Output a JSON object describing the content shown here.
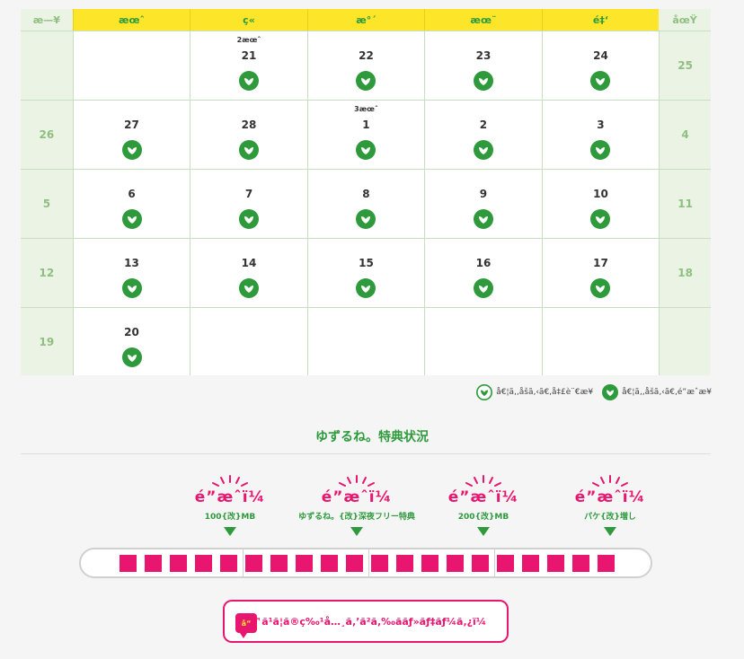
{
  "calendar": {
    "weekdays": [
      "æ—¥",
      "æœˆ",
      "ç«",
      "æ°´",
      "æœ¨",
      "é‡‘",
      "åœŸ"
    ],
    "rows": [
      {
        "left": "",
        "days": [
          {
            "num": "",
            "month": "",
            "icon": false
          },
          {
            "num": "21",
            "month": "2æœˆ",
            "icon": true
          },
          {
            "num": "22",
            "month": "",
            "icon": true
          },
          {
            "num": "23",
            "month": "",
            "icon": true
          },
          {
            "num": "24",
            "month": "",
            "icon": true
          }
        ],
        "right": "25"
      },
      {
        "left": "26",
        "days": [
          {
            "num": "27",
            "month": "",
            "icon": true
          },
          {
            "num": "28",
            "month": "",
            "icon": true
          },
          {
            "num": "1",
            "month": "3æœˆ",
            "icon": true
          },
          {
            "num": "2",
            "month": "",
            "icon": true
          },
          {
            "num": "3",
            "month": "",
            "icon": true
          }
        ],
        "right": "4"
      },
      {
        "left": "5",
        "days": [
          {
            "num": "6",
            "month": "",
            "icon": true
          },
          {
            "num": "7",
            "month": "",
            "icon": true
          },
          {
            "num": "8",
            "month": "",
            "icon": true
          },
          {
            "num": "9",
            "month": "",
            "icon": true
          },
          {
            "num": "10",
            "month": "",
            "icon": true
          }
        ],
        "right": "11"
      },
      {
        "left": "12",
        "days": [
          {
            "num": "13",
            "month": "",
            "icon": true
          },
          {
            "num": "14",
            "month": "",
            "icon": true
          },
          {
            "num": "15",
            "month": "",
            "icon": true
          },
          {
            "num": "16",
            "month": "",
            "icon": true
          },
          {
            "num": "17",
            "month": "",
            "icon": true
          }
        ],
        "right": "18"
      },
      {
        "left": "19",
        "days": [
          {
            "num": "20",
            "month": "",
            "icon": true
          },
          {
            "num": "",
            "month": "",
            "icon": false
          },
          {
            "num": "",
            "month": "",
            "icon": false
          },
          {
            "num": "",
            "month": "",
            "icon": false
          },
          {
            "num": "",
            "month": "",
            "icon": false
          }
        ],
        "right": ""
      }
    ]
  },
  "legend": {
    "item1": "å€¦ã‚‚åšã‚‹ã€‚å‡£è¨€æ¥",
    "item2": "å€¦ã‚‚åšã‚‹ã€‚é”æˆæ¥"
  },
  "section_title": "ゆずるね。特典状況",
  "benefits": [
    {
      "flag": "é”æˆï¼",
      "sub": "100{改}MB"
    },
    {
      "flag": "é”æˆï¼",
      "sub": "ゆずるね。{改}深夜フリー特典"
    },
    {
      "flag": "é”æˆï¼",
      "sub": "200{改}MB"
    },
    {
      "flag": "é”æˆï¼",
      "sub": "パケ{改}増し"
    }
  ],
  "progress": {
    "filled": 20,
    "total": 20
  },
  "button": {
    "icon_label": "å“",
    "label": "ã™ã¹ã¦ã®ç‰¹å…¸ã‚’ã²ã‚‰ããƒ»ãƒ‡ãƒ¼ã‚¿ï¼"
  },
  "colors": {
    "green": "#2e9a3c",
    "pink": "#e8166f",
    "yellow": "#fde52a",
    "side_bg": "#eaf3e4"
  }
}
